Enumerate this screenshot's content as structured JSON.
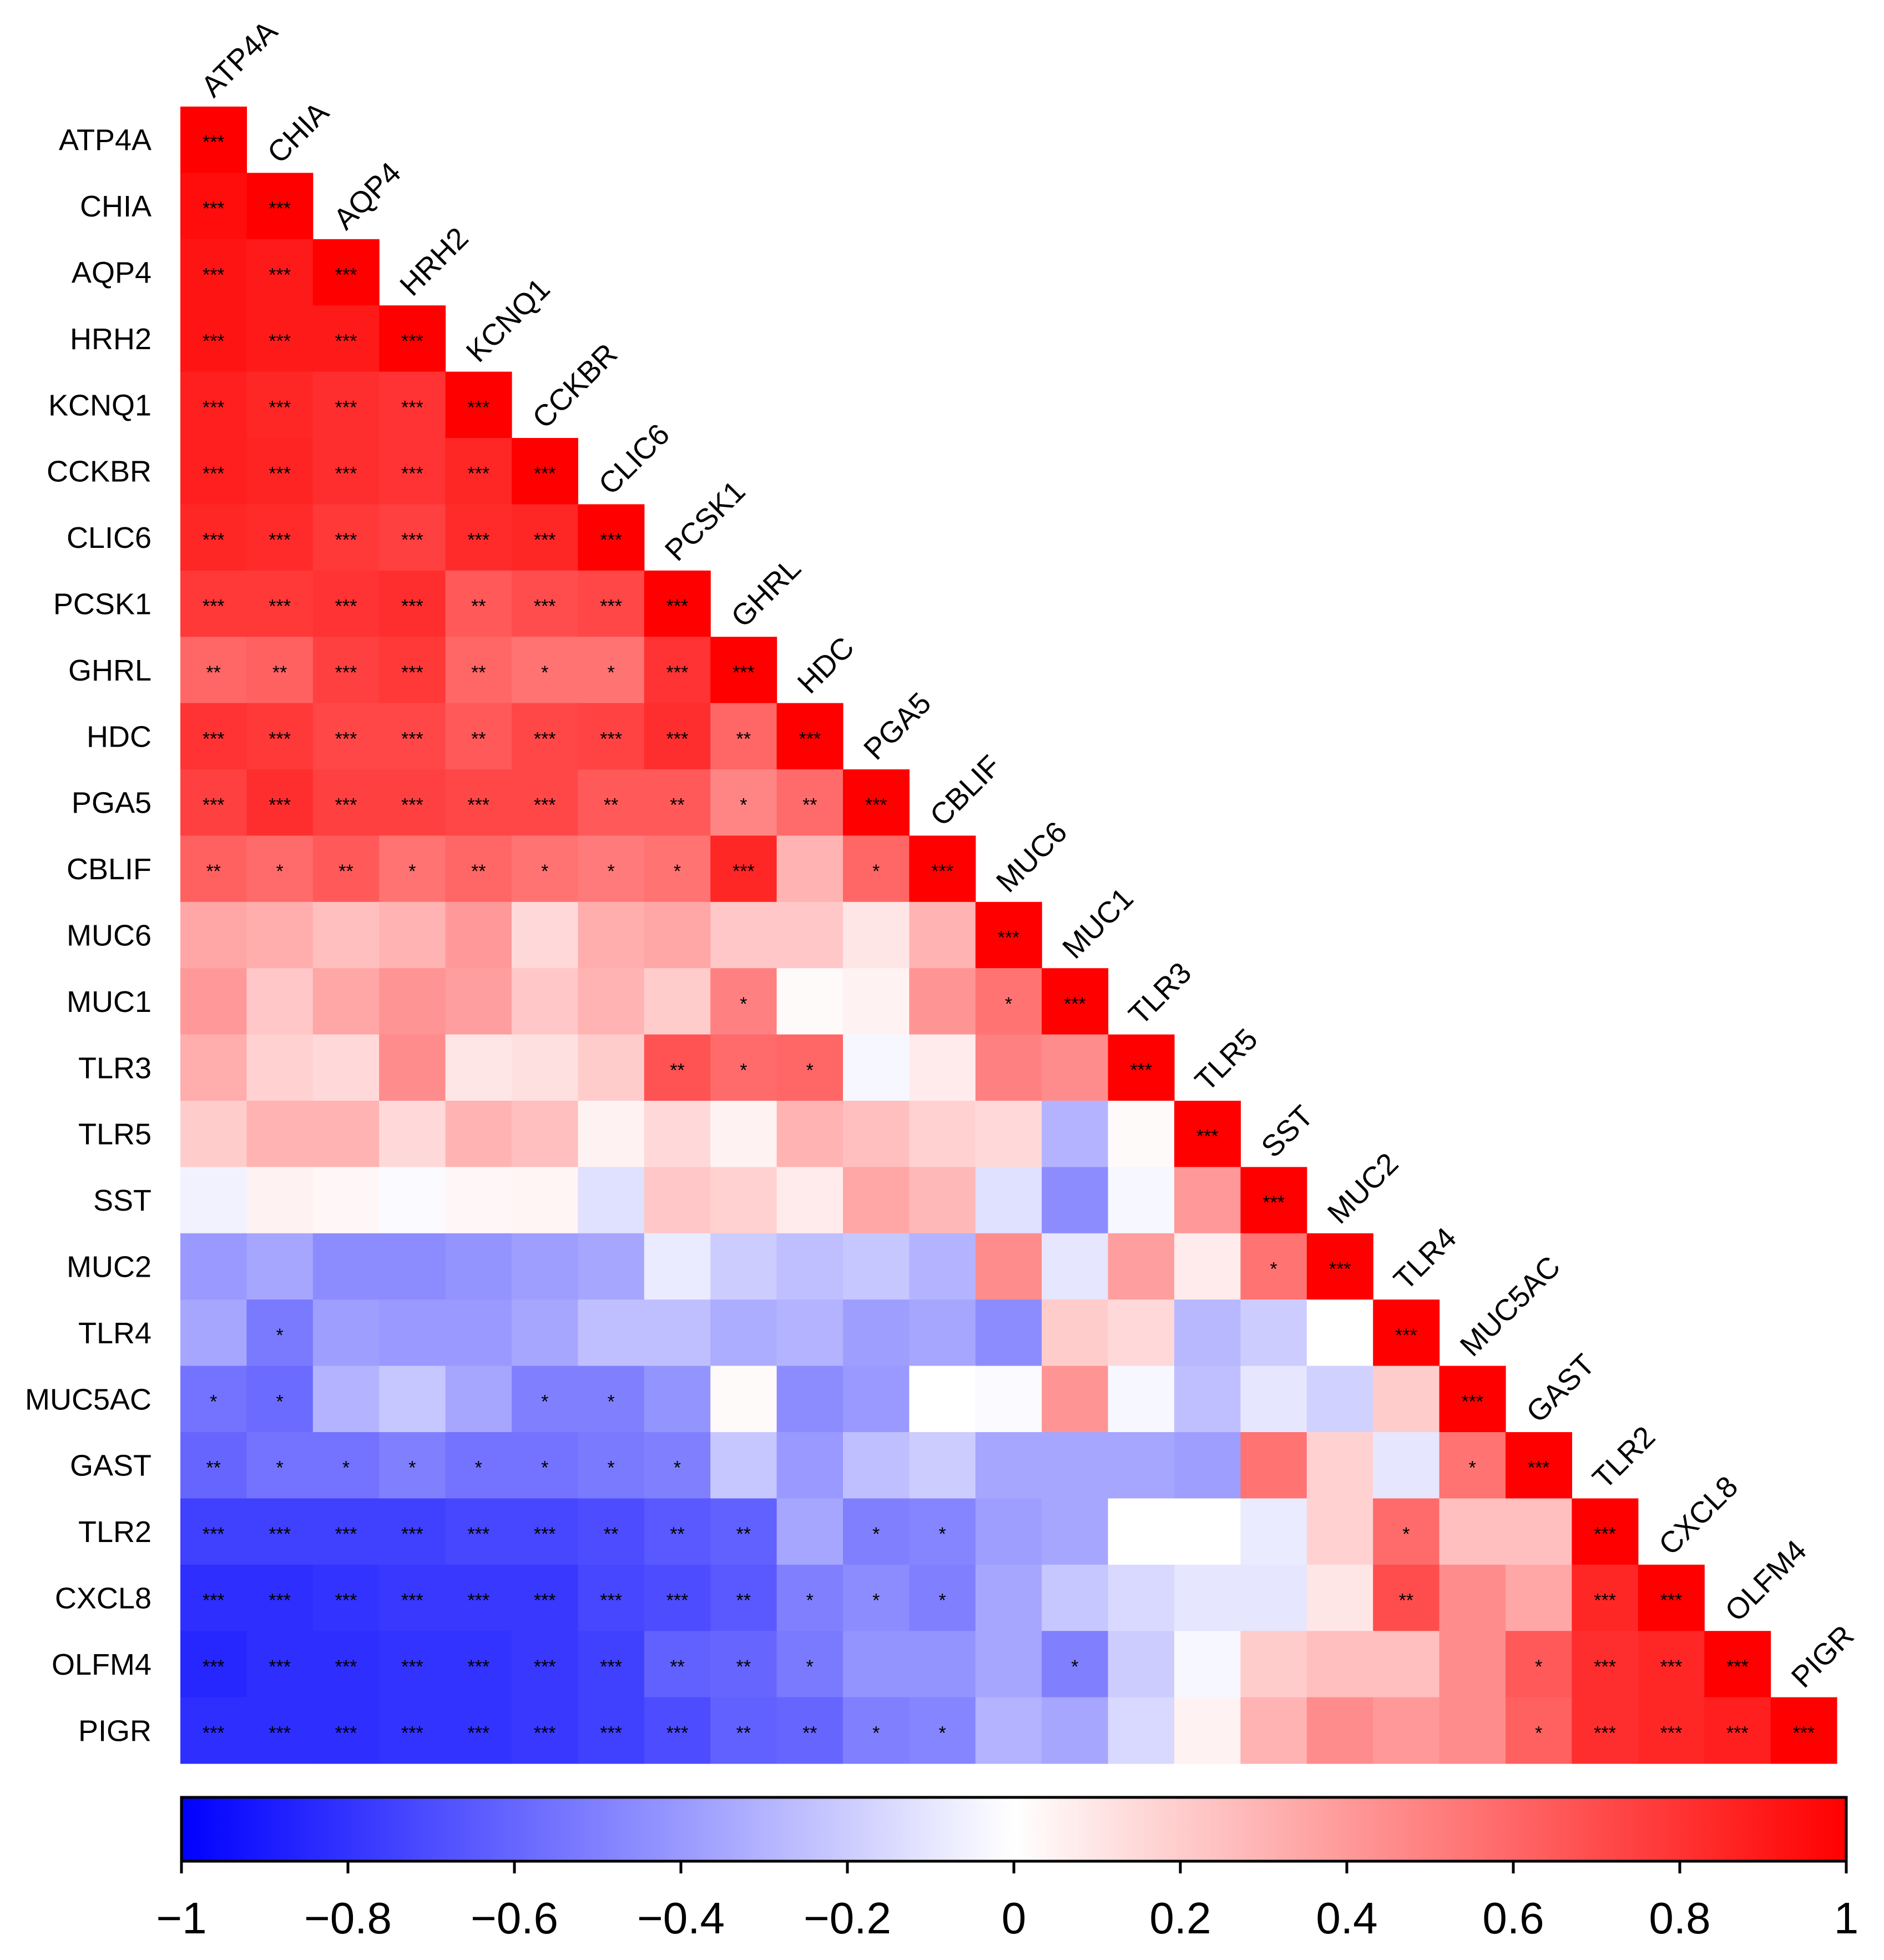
{
  "chart_data": {
    "type": "heatmap",
    "subtype": "lower-triangular correlation matrix",
    "title": "",
    "genes": [
      "ATP4A",
      "CHIA",
      "AQP4",
      "HRH2",
      "KCNQ1",
      "CCKBR",
      "CLIC6",
      "PCSK1",
      "GHRL",
      "HDC",
      "PGA5",
      "CBLIF",
      "MUC6",
      "MUC1",
      "TLR3",
      "TLR5",
      "SST",
      "MUC2",
      "TLR4",
      "MUC5AC",
      "GAST",
      "TLR2",
      "CXCL8",
      "OLFM4",
      "PIGR"
    ],
    "color_scale": {
      "min": -1,
      "max": 1,
      "low_color": "#0000ff",
      "mid_color": "#ffffff",
      "high_color": "#ff0000",
      "ticks": [
        -1,
        -0.8,
        -0.6,
        -0.4,
        -0.2,
        0,
        0.2,
        0.4,
        0.6,
        0.8,
        1
      ],
      "tick_labels": [
        "−1",
        "−0.8",
        "−0.6",
        "−0.4",
        "−0.2",
        "0",
        "0.2",
        "0.4",
        "0.6",
        "0.8",
        "1"
      ]
    },
    "values": [
      [
        1
      ],
      [
        0.95,
        1
      ],
      [
        0.92,
        0.9,
        1
      ],
      [
        0.92,
        0.9,
        0.9,
        1
      ],
      [
        0.88,
        0.85,
        0.82,
        0.8,
        1
      ],
      [
        0.88,
        0.86,
        0.82,
        0.8,
        0.85,
        1
      ],
      [
        0.85,
        0.83,
        0.78,
        0.75,
        0.83,
        0.85,
        1
      ],
      [
        0.78,
        0.78,
        0.8,
        0.82,
        0.65,
        0.7,
        0.72,
        1
      ],
      [
        0.6,
        0.62,
        0.75,
        0.78,
        0.6,
        0.55,
        0.55,
        0.8,
        1
      ],
      [
        0.8,
        0.78,
        0.72,
        0.72,
        0.65,
        0.72,
        0.74,
        0.82,
        0.6,
        1
      ],
      [
        0.75,
        0.82,
        0.75,
        0.75,
        0.72,
        0.72,
        0.65,
        0.65,
        0.48,
        0.58,
        1
      ],
      [
        0.62,
        0.58,
        0.65,
        0.55,
        0.6,
        0.55,
        0.52,
        0.55,
        0.85,
        0.3,
        0.6,
        1
      ],
      [
        0.35,
        0.32,
        0.25,
        0.3,
        0.4,
        0.15,
        0.32,
        0.35,
        0.22,
        0.22,
        0.1,
        0.3,
        1
      ],
      [
        0.4,
        0.22,
        0.35,
        0.42,
        0.38,
        0.22,
        0.3,
        0.2,
        0.5,
        0.02,
        0.05,
        0.42,
        0.55,
        1
      ],
      [
        0.32,
        0.18,
        0.15,
        0.45,
        0.1,
        0.12,
        0.2,
        0.68,
        0.58,
        0.6,
        -0.03,
        0.08,
        0.5,
        0.45,
        1
      ],
      [
        0.2,
        0.3,
        0.3,
        0.15,
        0.3,
        0.25,
        0.05,
        0.15,
        0.05,
        0.3,
        0.25,
        0.18,
        0.15,
        -0.3,
        0.02,
        1
      ],
      [
        -0.05,
        0.05,
        0.03,
        -0.02,
        0.03,
        0.04,
        -0.12,
        0.22,
        0.18,
        0.08,
        0.35,
        0.28,
        -0.12,
        -0.45,
        -0.03,
        0.4,
        1
      ],
      [
        -0.4,
        -0.35,
        -0.45,
        -0.45,
        -0.42,
        -0.38,
        -0.35,
        -0.08,
        -0.2,
        -0.25,
        -0.22,
        -0.3,
        0.45,
        -0.1,
        0.38,
        0.08,
        0.55,
        1
      ],
      [
        -0.35,
        -0.52,
        -0.38,
        -0.4,
        -0.4,
        -0.35,
        -0.25,
        -0.25,
        -0.32,
        -0.3,
        -0.38,
        -0.35,
        -0.45,
        0.2,
        0.15,
        -0.28,
        -0.2,
        0.0,
        1
      ],
      [
        -0.55,
        -0.58,
        -0.3,
        -0.22,
        -0.35,
        -0.5,
        -0.5,
        -0.42,
        0.02,
        -0.45,
        -0.4,
        0.0,
        -0.02,
        0.42,
        -0.03,
        -0.25,
        -0.1,
        -0.18,
        0.2,
        1
      ],
      [
        -0.6,
        -0.55,
        -0.55,
        -0.5,
        -0.55,
        -0.55,
        -0.52,
        -0.5,
        -0.22,
        -0.4,
        -0.25,
        -0.2,
        -0.35,
        -0.35,
        -0.35,
        -0.38,
        0.55,
        0.18,
        -0.1,
        0.55,
        1
      ],
      [
        -0.75,
        -0.75,
        -0.75,
        -0.75,
        -0.72,
        -0.72,
        -0.7,
        -0.65,
        -0.62,
        -0.35,
        -0.5,
        -0.48,
        -0.38,
        -0.35,
        0.0,
        0.0,
        -0.08,
        0.18,
        0.58,
        0.25,
        0.25,
        1
      ],
      [
        -0.82,
        -0.82,
        -0.8,
        -0.78,
        -0.78,
        -0.78,
        -0.72,
        -0.7,
        -0.65,
        -0.5,
        -0.45,
        -0.5,
        -0.35,
        -0.22,
        -0.15,
        -0.1,
        -0.1,
        0.1,
        0.7,
        0.45,
        0.35,
        0.85,
        1
      ],
      [
        -0.85,
        -0.82,
        -0.82,
        -0.8,
        -0.8,
        -0.78,
        -0.75,
        -0.62,
        -0.6,
        -0.52,
        -0.42,
        -0.42,
        -0.35,
        -0.5,
        -0.2,
        -0.03,
        0.2,
        0.25,
        0.25,
        0.45,
        0.65,
        0.82,
        0.85,
        1
      ],
      [
        -0.82,
        -0.82,
        -0.82,
        -0.8,
        -0.8,
        -0.78,
        -0.75,
        -0.7,
        -0.62,
        -0.6,
        -0.5,
        -0.48,
        -0.3,
        -0.35,
        -0.15,
        0.05,
        0.3,
        0.45,
        0.4,
        0.45,
        0.62,
        0.82,
        0.85,
        0.88,
        1
      ]
    ],
    "significance": [
      [
        "***"
      ],
      [
        "***",
        "***"
      ],
      [
        "***",
        "***",
        "***"
      ],
      [
        "***",
        "***",
        "***",
        "***"
      ],
      [
        "***",
        "***",
        "***",
        "***",
        "***"
      ],
      [
        "***",
        "***",
        "***",
        "***",
        "***",
        "***"
      ],
      [
        "***",
        "***",
        "***",
        "***",
        "***",
        "***",
        "***"
      ],
      [
        "***",
        "***",
        "***",
        "***",
        "**",
        "***",
        "***",
        "***"
      ],
      [
        "**",
        "**",
        "***",
        "***",
        "**",
        "*",
        "*",
        "***",
        "***"
      ],
      [
        "***",
        "***",
        "***",
        "***",
        "**",
        "***",
        "***",
        "***",
        "**",
        "***"
      ],
      [
        "***",
        "***",
        "***",
        "***",
        "***",
        "***",
        "**",
        "**",
        "*",
        "**",
        "***"
      ],
      [
        "**",
        "*",
        "**",
        "*",
        "**",
        "*",
        "*",
        "*",
        "***",
        "",
        "*",
        "***"
      ],
      [
        "",
        "",
        "",
        "",
        "",
        "",
        "",
        "",
        "",
        "",
        "",
        "",
        "***"
      ],
      [
        "",
        "",
        "",
        "",
        "",
        "",
        "",
        "",
        "*",
        "",
        "",
        "",
        "*",
        "***"
      ],
      [
        "",
        "",
        "",
        "",
        "",
        "",
        "",
        "**",
        "*",
        "*",
        "",
        "",
        "",
        "",
        "***"
      ],
      [
        "",
        "",
        "",
        "",
        "",
        "",
        "",
        "",
        "",
        "",
        "",
        "",
        "",
        "",
        "",
        "***"
      ],
      [
        "",
        "",
        "",
        "",
        "",
        "",
        "",
        "",
        "",
        "",
        "",
        "",
        "",
        "",
        "",
        "",
        "***"
      ],
      [
        "",
        "",
        "",
        "",
        "",
        "",
        "",
        "",
        "",
        "",
        "",
        "",
        "",
        "",
        "",
        "",
        "*",
        "***"
      ],
      [
        "",
        "*",
        "",
        "",
        "",
        "",
        "",
        "",
        "",
        "",
        "",
        "",
        "",
        "",
        "",
        "",
        "",
        "",
        "***"
      ],
      [
        "*",
        "*",
        "",
        "",
        "",
        "*",
        "*",
        "",
        "",
        "",
        "",
        "",
        "",
        "",
        "",
        "",
        "",
        "",
        "",
        "***"
      ],
      [
        "**",
        "*",
        "*",
        "*",
        "*",
        "*",
        "*",
        "*",
        "",
        "",
        "",
        "",
        "",
        "",
        "",
        "",
        "",
        "",
        "",
        "*",
        "***"
      ],
      [
        "***",
        "***",
        "***",
        "***",
        "***",
        "***",
        "**",
        "**",
        "**",
        "",
        "*",
        "*",
        "",
        "",
        "",
        "",
        "",
        "",
        "*",
        "",
        "",
        "***"
      ],
      [
        "***",
        "***",
        "***",
        "***",
        "***",
        "***",
        "***",
        "***",
        "**",
        "*",
        "*",
        "*",
        "",
        "",
        "",
        "",
        "",
        "",
        "**",
        "",
        "",
        "***",
        "***"
      ],
      [
        "***",
        "***",
        "***",
        "***",
        "***",
        "***",
        "***",
        "**",
        "**",
        "*",
        "",
        "",
        "",
        "*",
        "",
        "",
        "",
        "",
        "",
        "",
        "*",
        "***",
        "***",
        "***"
      ],
      [
        "***",
        "***",
        "***",
        "***",
        "***",
        "***",
        "***",
        "***",
        "**",
        "**",
        "*",
        "*",
        "",
        "",
        "",
        "",
        "",
        "",
        "",
        "",
        "*",
        "***",
        "***",
        "***",
        "***"
      ]
    ]
  }
}
